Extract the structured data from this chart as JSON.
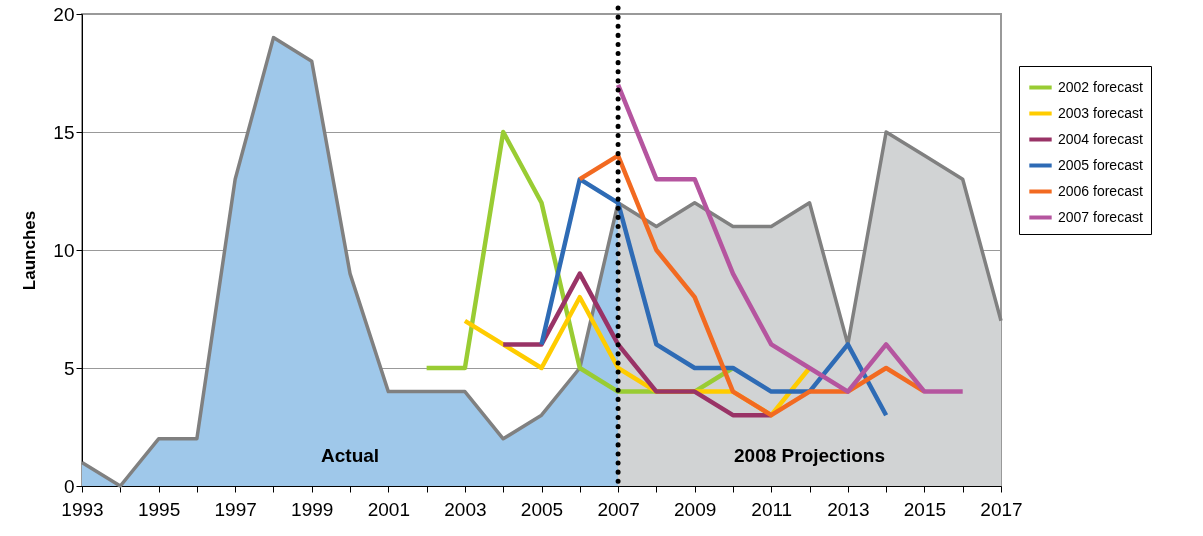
{
  "chart_data": {
    "type": "line",
    "ylabel": "Launches",
    "series": [
      {
        "name": "Actual",
        "type": "area",
        "color": "#9fc8ea",
        "x": [
          1993,
          1994,
          1995,
          1996,
          1997,
          1998,
          1999,
          2000,
          2001,
          2002,
          2003,
          2004,
          2005,
          2006,
          2007
        ],
        "values": [
          1,
          0,
          2,
          2,
          13,
          19,
          18,
          9,
          4,
          4,
          4,
          2,
          3,
          5,
          12
        ]
      },
      {
        "name": "2008 Projections",
        "type": "area",
        "color": "#d1d3d4",
        "x": [
          2007,
          2008,
          2009,
          2010,
          2011,
          2012,
          2013,
          2014,
          2015,
          2016,
          2017
        ],
        "values": [
          12,
          11,
          12,
          11,
          11,
          12,
          6,
          15,
          14,
          13,
          7
        ]
      },
      {
        "name": "2002 forecast",
        "color": "#99cc33",
        "x": [
          2002,
          2003,
          2004,
          2005,
          2006,
          2007,
          2008,
          2009,
          2010
        ],
        "values": [
          5,
          5,
          15,
          12,
          5,
          4,
          4,
          4,
          5
        ]
      },
      {
        "name": "2003 forecast",
        "color": "#ffcc00",
        "x": [
          2003,
          2004,
          2005,
          2006,
          2007,
          2008,
          2009,
          2010,
          2011,
          2012
        ],
        "values": [
          7,
          6,
          5,
          8,
          5,
          4,
          4,
          4,
          3,
          5
        ]
      },
      {
        "name": "2004 forecast",
        "color": "#993366",
        "x": [
          2004,
          2005,
          2006,
          2007,
          2008,
          2009,
          2010,
          2011
        ],
        "values": [
          6,
          6,
          9,
          6,
          4,
          4,
          3,
          3
        ]
      },
      {
        "name": "2005 forecast",
        "color": "#2e6bb5",
        "x": [
          2005,
          2006,
          2007,
          2008,
          2009,
          2010,
          2011,
          2012,
          2013,
          2014
        ],
        "values": [
          6,
          13,
          12,
          6,
          5,
          5,
          4,
          4,
          6,
          3
        ]
      },
      {
        "name": "2006 forecast",
        "color": "#f26a21",
        "x": [
          2006,
          2007,
          2008,
          2009,
          2010,
          2011,
          2012,
          2013,
          2014,
          2015
        ],
        "values": [
          13,
          14,
          10,
          8,
          4,
          3,
          4,
          4,
          5,
          4
        ]
      },
      {
        "name": "2007 forecast",
        "color": "#b5559f",
        "x": [
          2007,
          2008,
          2009,
          2010,
          2011,
          2012,
          2013,
          2014,
          2015,
          2016
        ],
        "values": [
          17,
          13,
          13,
          9,
          6,
          5,
          4,
          6,
          4,
          4
        ]
      }
    ],
    "xlim": [
      1993,
      2017
    ],
    "xticks": [
      1993,
      {
        "value": 1994,
        "label": null
      },
      1995,
      {
        "value": 1996,
        "label": null
      },
      1997,
      {
        "value": 1998,
        "label": null
      },
      1999,
      {
        "value": 2000,
        "label": null
      },
      2001,
      {
        "value": 2002,
        "label": null
      },
      2003,
      {
        "value": 2004,
        "label": null
      },
      2005,
      {
        "value": 2006,
        "label": null
      },
      2007,
      {
        "value": 2008,
        "label": null
      },
      2009,
      {
        "value": 2010,
        "label": null
      },
      2011,
      {
        "value": 2012,
        "label": null
      },
      2013,
      {
        "value": 2014,
        "label": null
      },
      2015,
      {
        "value": 2016,
        "label": null
      },
      2017
    ],
    "ylim": [
      0,
      20
    ],
    "yticks": [
      0,
      5,
      10,
      15,
      20
    ],
    "ref_lines": [
      {
        "axis": "x",
        "value": 2007,
        "color": "#000000",
        "line_style": "dotted"
      }
    ],
    "grid": "y",
    "legend": "right",
    "line_style": "solid",
    "marker": "none"
  }
}
